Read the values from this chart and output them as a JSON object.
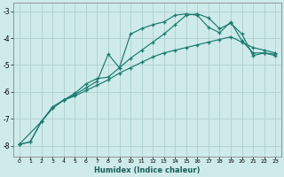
{
  "xlabel": "Humidex (Indice chaleur)",
  "xlim": [
    -0.5,
    23.5
  ],
  "ylim": [
    -8.4,
    -2.7
  ],
  "yticks": [
    -8,
    -7,
    -6,
    -5,
    -4,
    -3
  ],
  "xticks": [
    0,
    1,
    2,
    3,
    4,
    5,
    6,
    7,
    8,
    9,
    10,
    11,
    12,
    13,
    14,
    15,
    16,
    17,
    18,
    19,
    20,
    21,
    22,
    23
  ],
  "bg_color": "#ceeaea",
  "line_color": "#1a7a6e",
  "grid_color": "#aed0d0",
  "line1": {
    "x": [
      0,
      1,
      2,
      3,
      4,
      5,
      6,
      7,
      8,
      9,
      10,
      11,
      12,
      13,
      14,
      15,
      16,
      17,
      18,
      19,
      20,
      21,
      22,
      23
    ],
    "y": [
      -7.95,
      -7.85,
      -7.1,
      -6.6,
      -6.3,
      -6.15,
      -5.95,
      -5.75,
      -5.55,
      -5.3,
      -5.1,
      -4.9,
      -4.7,
      -4.55,
      -4.45,
      -4.35,
      -4.25,
      -4.15,
      -4.05,
      -3.95,
      -4.15,
      -4.35,
      -4.45,
      -4.55
    ]
  },
  "line2": {
    "x": [
      0,
      1,
      2,
      3,
      4,
      5,
      6,
      7,
      8,
      9,
      10,
      11,
      12,
      13,
      14,
      15,
      16,
      17,
      18,
      19,
      20,
      21,
      22,
      23
    ],
    "y": [
      -7.95,
      -7.85,
      -7.1,
      -6.6,
      -6.3,
      -6.1,
      -5.85,
      -5.6,
      -4.6,
      -5.1,
      -3.85,
      -3.65,
      -3.5,
      -3.4,
      -3.15,
      -3.1,
      -3.15,
      -3.6,
      -3.8,
      -3.4,
      -4.1,
      -4.55,
      -4.55,
      -4.6
    ]
  },
  "line3": {
    "x": [
      0,
      2,
      3,
      4,
      5,
      6,
      7,
      8,
      9,
      10,
      11,
      12,
      13,
      14,
      15,
      16,
      17,
      18,
      19,
      20,
      21,
      22,
      23
    ],
    "y": [
      -7.95,
      -7.1,
      -6.55,
      -6.3,
      -6.05,
      -5.7,
      -5.5,
      -5.45,
      -5.1,
      -4.75,
      -4.45,
      -4.15,
      -3.85,
      -3.5,
      -3.15,
      -3.1,
      -3.25,
      -3.65,
      -3.45,
      -3.85,
      -4.65,
      -4.55,
      -4.65
    ]
  }
}
